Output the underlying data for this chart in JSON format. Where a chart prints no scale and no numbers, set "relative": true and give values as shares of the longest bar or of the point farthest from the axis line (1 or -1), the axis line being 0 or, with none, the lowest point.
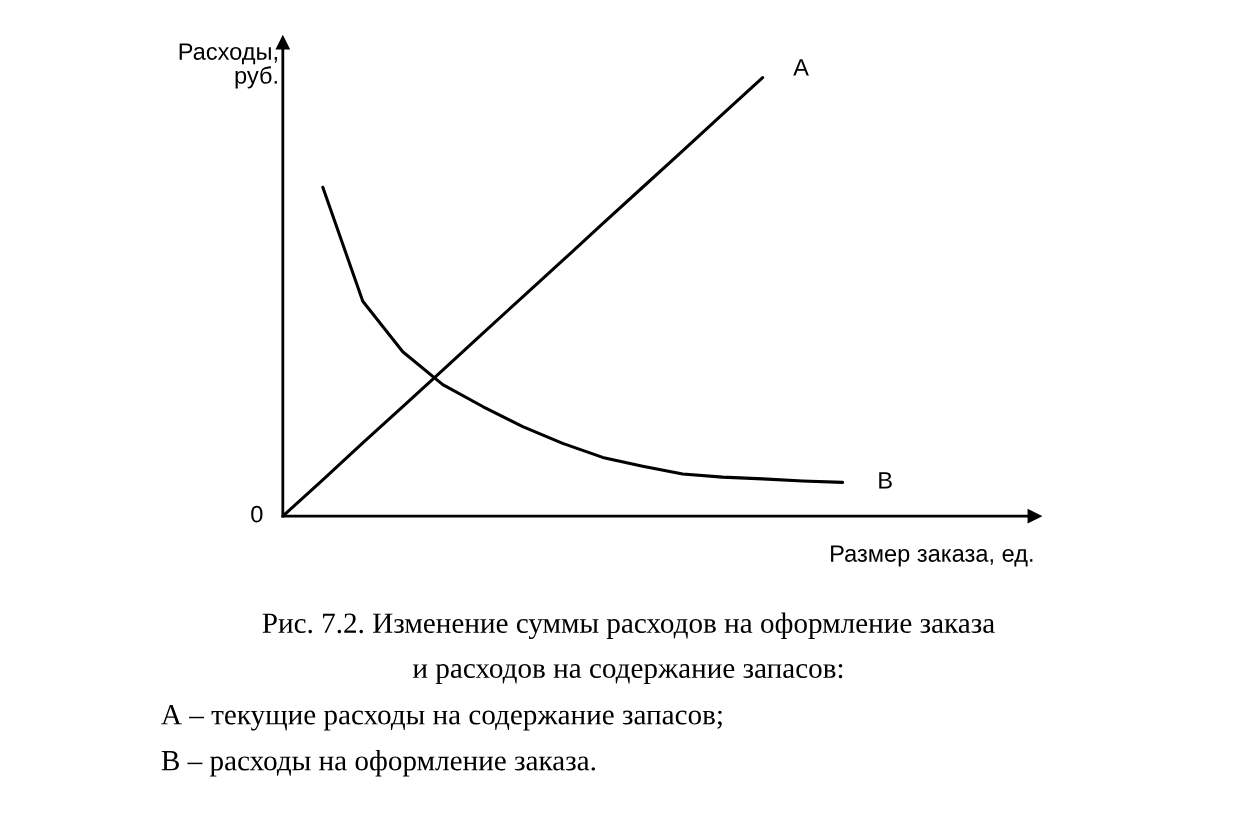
{
  "chart_data": {
    "type": "line",
    "relative": true,
    "xlabel": "Размер заказа, ед.",
    "ylabel": "Расходы, руб.",
    "categories": [
      null,
      null,
      null,
      null,
      null,
      null,
      null,
      null,
      null,
      null,
      null,
      null,
      null,
      null,
      null,
      null,
      null,
      null,
      null
    ],
    "series": [
      {
        "name": "А",
        "color": "#000000",
        "values": [
          0,
          0.083,
          0.167,
          0.25,
          0.333,
          0.417,
          0.5,
          0.583,
          0.667,
          0.75,
          0.833,
          0.917,
          1,
          null,
          null,
          null,
          null,
          null,
          null
        ]
      },
      {
        "name": "В",
        "color": "#000000",
        "values": [
          null,
          0.75,
          0.49,
          0.375,
          0.3,
          0.25,
          0.204,
          0.166,
          0.134,
          0.114,
          0.096,
          0.089,
          0.085,
          0.08,
          0.077,
          null,
          null,
          null,
          null
        ]
      }
    ],
    "annotations": [
      "0",
      "Рис. 7.2. Изменение суммы расходов на оформление заказа",
      "и расходов на содержание запасов:",
      "А – текущие расходы на содержание запасов;",
      "В – расходы на оформление заказа."
    ]
  }
}
